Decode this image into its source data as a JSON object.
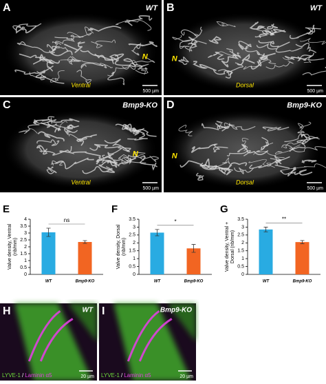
{
  "image_panels": [
    {
      "label": "A",
      "genotype": "WT",
      "marker": "N",
      "region": "Ventral",
      "scale": "500 µm"
    },
    {
      "label": "B",
      "genotype": "WT",
      "marker": "N",
      "region": "Dorsal",
      "scale": "500 µm"
    },
    {
      "label": "C",
      "genotype": "Bmp9-KO",
      "marker": "N",
      "region": "Ventral",
      "scale": "500 µm"
    },
    {
      "label": "D",
      "genotype": "Bmp9-KO",
      "marker": "N",
      "region": "Dorsal",
      "scale": "500 µm"
    }
  ],
  "stain_panels": [
    {
      "label": "H",
      "genotype": "WT",
      "stain": [
        "LYVE-1",
        "/",
        "Laminin α5"
      ],
      "scale": "20 µm"
    },
    {
      "label": "I",
      "genotype": "Bmp9-KO",
      "stain": [
        "LYVE-1",
        "/",
        "Laminin α5"
      ],
      "scale": "20 µm"
    }
  ],
  "chart_data": [
    {
      "type": "bar",
      "panel_label": "E",
      "ylabel": [
        "Valve density, Ventral",
        "(nb/mm)"
      ],
      "categories": [
        "WT",
        "Bmp9-KO"
      ],
      "values": [
        3.05,
        2.35
      ],
      "errors": [
        0.3,
        0.1
      ],
      "colors": [
        "#29abe2",
        "#f26522"
      ],
      "ylim": [
        0,
        4
      ],
      "yticks": [
        0,
        0.5,
        1,
        1.5,
        2,
        2.5,
        3,
        3.5,
        4
      ],
      "significance": "ns"
    },
    {
      "type": "bar",
      "panel_label": "F",
      "ylabel": [
        "Valve density, Dorsal",
        "(nb/mm)"
      ],
      "categories": [
        "WT",
        "Bmp9-KO"
      ],
      "values": [
        2.65,
        1.65
      ],
      "errors": [
        0.2,
        0.25
      ],
      "colors": [
        "#29abe2",
        "#f26522"
      ],
      "ylim": [
        0,
        3.5
      ],
      "yticks": [
        0,
        0.5,
        1,
        1.5,
        2,
        2.5,
        3,
        3.5
      ],
      "significance": "*"
    },
    {
      "type": "bar",
      "panel_label": "G",
      "ylabel": [
        "Valve density, Ventral +",
        "Dorsal (nb/mm)"
      ],
      "categories": [
        "WT",
        "Bmp9-KO"
      ],
      "values": [
        2.85,
        2.05
      ],
      "errors": [
        0.15,
        0.1
      ],
      "colors": [
        "#29abe2",
        "#f26522"
      ],
      "ylim": [
        0,
        3.5
      ],
      "yticks": [
        0,
        0.5,
        1,
        1.5,
        2,
        2.5,
        3,
        3.5
      ],
      "significance": "**"
    }
  ]
}
